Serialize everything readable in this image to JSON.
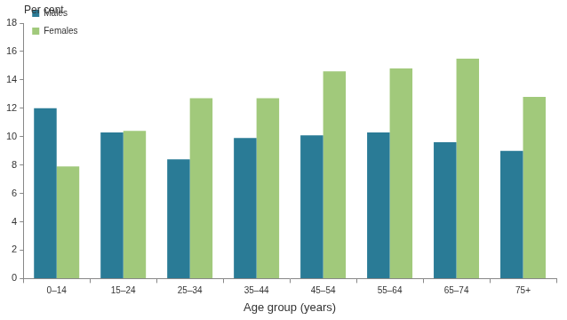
{
  "chart_data": {
    "type": "bar",
    "y_label": "Per cent",
    "x_label": "Age group (years)",
    "categories": [
      "0–14",
      "15–24",
      "25–34",
      "35–44",
      "45–54",
      "55–64",
      "65–74",
      "75+"
    ],
    "series": [
      {
        "name": "Males",
        "color": "#2a7b96",
        "values": [
          12.0,
          10.3,
          8.4,
          9.9,
          10.1,
          10.3,
          9.6,
          9.0
        ]
      },
      {
        "name": "Females",
        "color": "#a1c97b",
        "values": [
          7.9,
          10.4,
          12.7,
          12.7,
          14.6,
          14.8,
          15.5,
          12.8
        ]
      }
    ],
    "ylim": [
      0,
      18
    ],
    "yticks": [
      0,
      2,
      4,
      6,
      8,
      10,
      12,
      14,
      16,
      18
    ],
    "grid": false,
    "legend": "upper left"
  }
}
